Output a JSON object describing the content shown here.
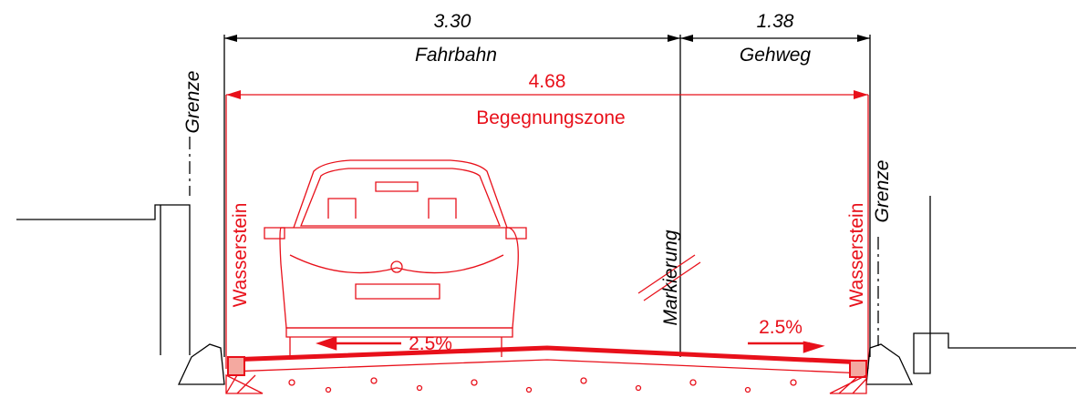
{
  "dimensions": {
    "fahrbahn": {
      "width": "3.30",
      "label": "Fahrbahn"
    },
    "gehweg": {
      "width": "1.38",
      "label": "Gehweg"
    },
    "total": {
      "width": "4.68",
      "label": "Begegnungszone"
    }
  },
  "labels": {
    "grenze_left": "Grenze",
    "grenze_right": "Grenze",
    "wasserstein_left": "Wasserstein",
    "wasserstein_right": "Wasserstein",
    "markierung": "Markierung"
  },
  "slopes": {
    "left": "2.5%",
    "right": "2.5%"
  }
}
